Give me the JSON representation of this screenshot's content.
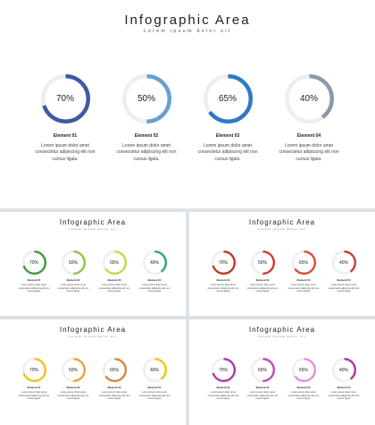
{
  "slides": [
    {
      "title": "Infographic Area",
      "subtitle": "Lorem ipsum dolor sit",
      "track_color": "#eeeeee",
      "items": [
        {
          "value": 70,
          "label": "70%",
          "name": "Element  01",
          "desc": "Lorem ipsum dolor amet consectetur adipiscing elit non cursus ligula.",
          "color": "#3f5aa3"
        },
        {
          "value": 50,
          "label": "50%",
          "name": "Element  02",
          "desc": "Lorem ipsum dolor amet consectetur adipiscing elit non cursus ligula.",
          "color": "#6a9fd2"
        },
        {
          "value": 65,
          "label": "65%",
          "name": "Element  03",
          "desc": "Lorem ipsum dolor amet consectetur adipiscing elit non cursus ligula.",
          "color": "#2f78c8"
        },
        {
          "value": 40,
          "label": "40%",
          "name": "Element  04",
          "desc": "Lorem ipsum dolor amet consectetur adipiscing elit non cursus ligula.",
          "color": "#8a99ab"
        }
      ]
    },
    {
      "title": "Infographic Area",
      "subtitle": "Lorem ipsum dolor sit",
      "track_color": "#eeeeee",
      "items": [
        {
          "value": 70,
          "label": "70%",
          "name": "Element 01",
          "desc": "Lorem ipsum dolor amet consectetur adipiscing elit non cursus ligula.",
          "color": "#3c9a3c"
        },
        {
          "value": 50,
          "label": "50%",
          "name": "Element 02",
          "desc": "Lorem ipsum dolor amet consectetur adipiscing elit non cursus ligula.",
          "color": "#8cc63f"
        },
        {
          "value": 65,
          "label": "65%",
          "name": "Element 03",
          "desc": "Lorem ipsum dolor amet consectetur adipiscing elit non cursus ligula.",
          "color": "#c5d948"
        },
        {
          "value": 40,
          "label": "40%",
          "name": "Element 04",
          "desc": "Lorem ipsum dolor amet consectetur adipiscing elit non cursus ligula.",
          "color": "#2aa876"
        }
      ]
    },
    {
      "title": "Infographic Area",
      "subtitle": "Lorem ipsum dolor sit",
      "track_color": "#eeeeee",
      "items": [
        {
          "value": 70,
          "label": "70%",
          "name": "Element 01",
          "desc": "Lorem ipsum dolor amet consectetur adipiscing elit non cursus ligula.",
          "color": "#c0392b"
        },
        {
          "value": 50,
          "label": "50%",
          "name": "Element 02",
          "desc": "Lorem ipsum dolor amet consectetur adipiscing elit non cursus ligula.",
          "color": "#d63a2f"
        },
        {
          "value": 65,
          "label": "65%",
          "name": "Element 03",
          "desc": "Lorem ipsum dolor amet consectetur adipiscing elit non cursus ligula.",
          "color": "#e0483c"
        },
        {
          "value": 40,
          "label": "40%",
          "name": "Element 04",
          "desc": "Lorem ipsum dolor amet consectetur adipiscing elit non cursus ligula.",
          "color": "#c43c3c"
        }
      ]
    },
    {
      "title": "Infographic Area",
      "subtitle": "Lorem ipsum dolor sit",
      "track_color": "#eeeeee",
      "items": [
        {
          "value": 70,
          "label": "70%",
          "name": "Element 01",
          "desc": "Lorem ipsum dolor amet consectetur adipiscing elit non cursus ligula.",
          "color": "#f2c21b"
        },
        {
          "value": 50,
          "label": "50%",
          "name": "Element 02",
          "desc": "Lorem ipsum dolor amet consectetur adipiscing elit non cursus ligula.",
          "color": "#e8a33a"
        },
        {
          "value": 65,
          "label": "65%",
          "name": "Element 03",
          "desc": "Lorem ipsum dolor amet consectetur adipiscing elit non cursus ligula.",
          "color": "#d08a3c"
        },
        {
          "value": 40,
          "label": "40%",
          "name": "Element 04",
          "desc": "Lorem ipsum dolor amet consectetur adipiscing elit non cursus ligula.",
          "color": "#f0c419"
        }
      ]
    },
    {
      "title": "Infographic Area",
      "subtitle": "Lorem ipsum dolor sit",
      "track_color": "#eeeeee",
      "items": [
        {
          "value": 70,
          "label": "70%",
          "name": "Element 01",
          "desc": "Lorem ipsum dolor amet consectetur adipiscing elit non cursus ligula.",
          "color": "#b03aa8"
        },
        {
          "value": 50,
          "label": "50%",
          "name": "Element 02",
          "desc": "Lorem ipsum dolor amet consectetur adipiscing elit non cursus ligula.",
          "color": "#c04ab8"
        },
        {
          "value": 65,
          "label": "65%",
          "name": "Element 03",
          "desc": "Lorem ipsum dolor amet consectetur adipiscing elit non cursus ligula.",
          "color": "#e590d8"
        },
        {
          "value": 40,
          "label": "40%",
          "name": "Element 04",
          "desc": "Lorem ipsum dolor amet consectetur adipiscing elit non cursus ligula.",
          "color": "#b8329e"
        }
      ]
    }
  ]
}
